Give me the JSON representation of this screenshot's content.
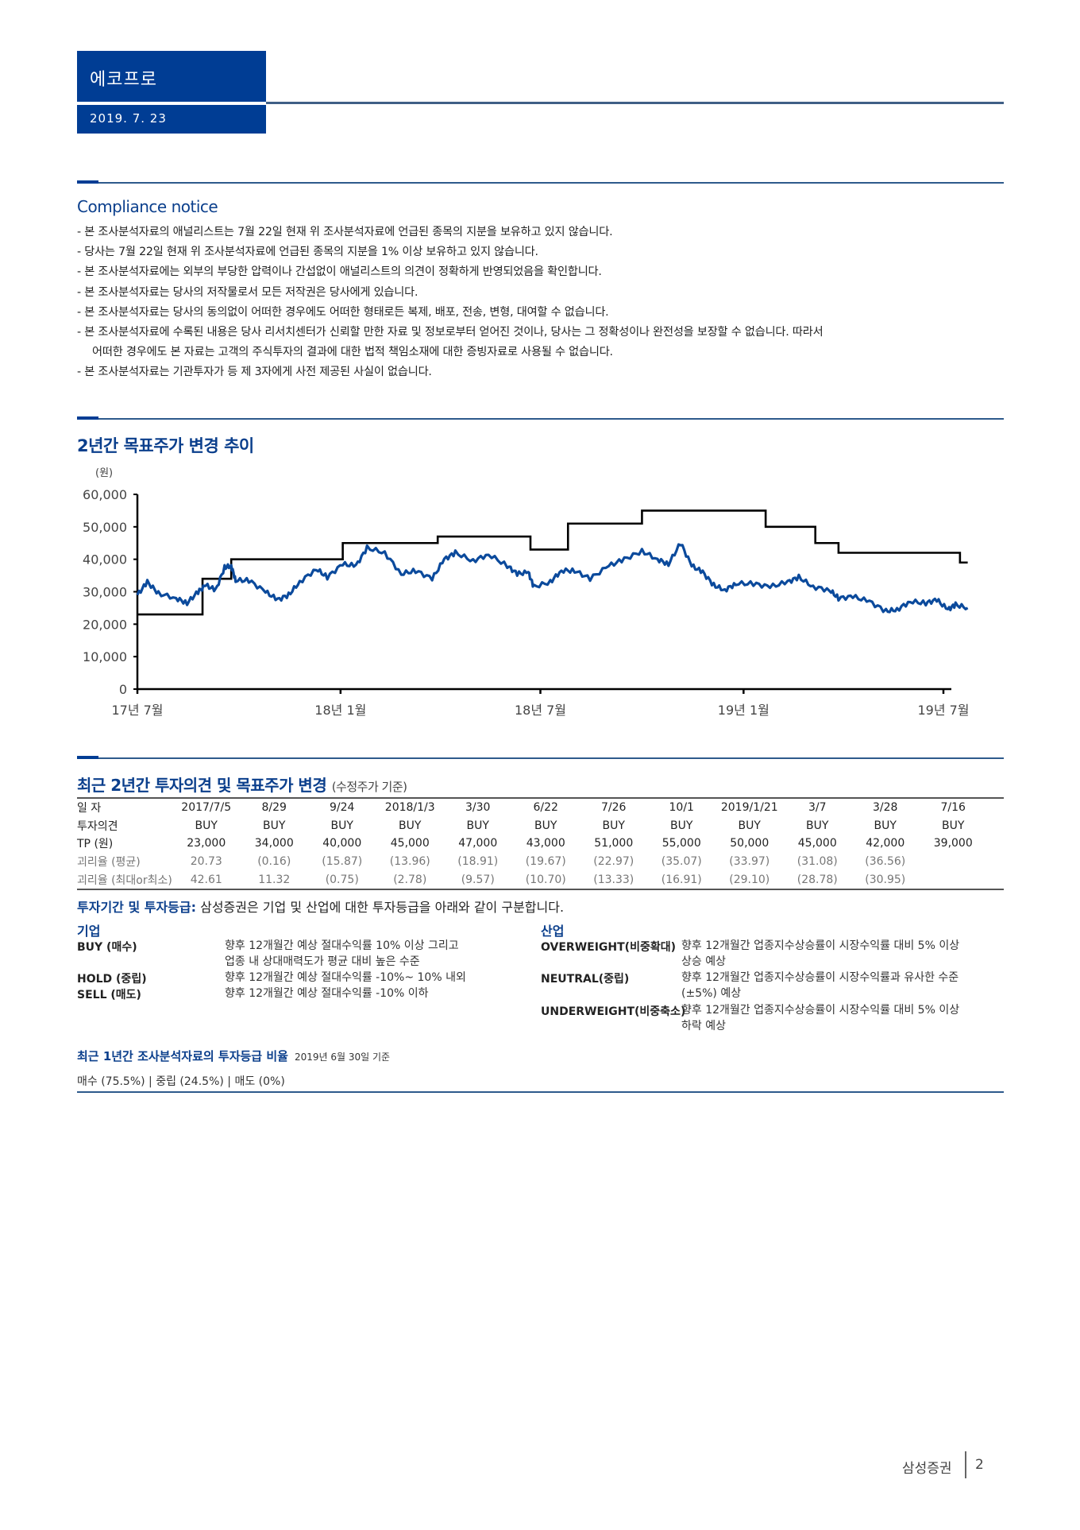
{
  "header": {
    "company": "에코프로",
    "date": "2019. 7. 23"
  },
  "compliance": {
    "title": "Compliance notice",
    "items": [
      "- 본 조사분석자료의 애널리스트는 7월 22일 현재 위 조사분석자료에 언급된 종목의 지분을 보유하고 있지 않습니다.",
      "- 당사는 7월 22일 현재 위 조사분석자료에 언급된 종목의 지분을 1% 이상 보유하고 있지 않습니다.",
      "- 본 조사분석자료에는 외부의 부당한 압력이나 간섭없이 애널리스트의 의견이 정확하게 반영되었음을 확인합니다.",
      "- 본 조사분석자료는 당사의 저작물로서 모든 저작권은 당사에게 있습니다.",
      "- 본 조사분석자료는 당사의 동의없이 어떠한 경우에도 어떠한 형태로든 복제, 배포, 전송, 변형, 대여할 수 없습니다.",
      "- 본 조사분석자료에 수록된 내용은 당사 리서치센터가 신뢰할 만한 자료 및 정보로부터 얻어진 것이나, 당사는 그 정확성이나 완전성을 보장할 수 없습니다. 따라서",
      "어떠한 경우에도 본 자료는 고객의 주식투자의 결과에 대한 법적 책임소재에 대한 증빙자료로 사용될 수 없습니다.",
      "- 본 조사분석자료는 기관투자가 등 제 3자에게 사전 제공된 사실이 없습니다."
    ]
  },
  "chart_section": {
    "title": "2년간 목표주가 변경 추이"
  },
  "chart_data": {
    "type": "line",
    "title": "2년간 목표주가 변경 추이",
    "ylabel": "(원)",
    "xlabel": "",
    "ylim": [
      0,
      60000
    ],
    "yticks": [
      "60,000",
      "50,000",
      "40,000",
      "30,000",
      "20,000",
      "10,000",
      "0"
    ],
    "xticks": [
      "17년 7월",
      "18년 1월",
      "18년 7월",
      "19년 1월",
      "19년 7월"
    ],
    "grid": false,
    "legend": "none",
    "series": [
      {
        "name": "목표주가",
        "color": "#000000",
        "style": "step",
        "points": [
          {
            "date": "2017-07-05",
            "value": 23000
          },
          {
            "date": "2017-08-29",
            "value": 34000
          },
          {
            "date": "2017-09-24",
            "value": 40000
          },
          {
            "date": "2018-01-03",
            "value": 45000
          },
          {
            "date": "2018-03-30",
            "value": 47000
          },
          {
            "date": "2018-06-22",
            "value": 43000
          },
          {
            "date": "2018-07-26",
            "value": 51000
          },
          {
            "date": "2018-10-01",
            "value": 55000
          },
          {
            "date": "2019-01-21",
            "value": 50000
          },
          {
            "date": "2019-03-07",
            "value": 45000
          },
          {
            "date": "2019-03-28",
            "value": 42000
          },
          {
            "date": "2019-07-16",
            "value": 39000
          },
          {
            "date": "2019-07-23",
            "value": 39000
          }
        ]
      },
      {
        "name": "수정주가",
        "color": "#0b4a9c",
        "style": "line",
        "points": [
          {
            "date": "2017-07",
            "value": 29000
          },
          {
            "date": "2017-07-10",
            "value": 33000
          },
          {
            "date": "2017-07-20",
            "value": 29500
          },
          {
            "date": "2017-08-05",
            "value": 28000
          },
          {
            "date": "2017-08-15",
            "value": 26500
          },
          {
            "date": "2017-08-25",
            "value": 30000
          },
          {
            "date": "2017-09-01",
            "value": 32000
          },
          {
            "date": "2017-09-10",
            "value": 30500
          },
          {
            "date": "2017-09-18",
            "value": 37500
          },
          {
            "date": "2017-09-24",
            "value": 38000
          },
          {
            "date": "2017-09-28",
            "value": 33500
          },
          {
            "date": "2017-10-10",
            "value": 33500
          },
          {
            "date": "2017-10-25",
            "value": 30000
          },
          {
            "date": "2017-11-05",
            "value": 27500
          },
          {
            "date": "2017-11-15",
            "value": 29000
          },
          {
            "date": "2017-11-25",
            "value": 33000
          },
          {
            "date": "2017-12-10",
            "value": 37000
          },
          {
            "date": "2017-12-20",
            "value": 34500
          },
          {
            "date": "2018-01-03",
            "value": 38500
          },
          {
            "date": "2018-01-15",
            "value": 38000
          },
          {
            "date": "2018-01-25",
            "value": 43500
          },
          {
            "date": "2018-02-10",
            "value": 42000
          },
          {
            "date": "2018-02-25",
            "value": 35500
          },
          {
            "date": "2018-03-10",
            "value": 36500
          },
          {
            "date": "2018-03-25",
            "value": 34000
          },
          {
            "date": "2018-04-05",
            "value": 40000
          },
          {
            "date": "2018-04-15",
            "value": 42000
          },
          {
            "date": "2018-05-01",
            "value": 39500
          },
          {
            "date": "2018-05-15",
            "value": 41500
          },
          {
            "date": "2018-06-01",
            "value": 38000
          },
          {
            "date": "2018-06-10",
            "value": 35500
          },
          {
            "date": "2018-06-20",
            "value": 36000
          },
          {
            "date": "2018-06-25",
            "value": 31500
          },
          {
            "date": "2018-07-10",
            "value": 33000
          },
          {
            "date": "2018-07-20",
            "value": 36500
          },
          {
            "date": "2018-08-01",
            "value": 36500
          },
          {
            "date": "2018-08-15",
            "value": 34000
          },
          {
            "date": "2018-09-01",
            "value": 38000
          },
          {
            "date": "2018-09-15",
            "value": 40000
          },
          {
            "date": "2018-10-01",
            "value": 42500
          },
          {
            "date": "2018-10-15",
            "value": 40000
          },
          {
            "date": "2018-10-25",
            "value": 38500
          },
          {
            "date": "2018-11-05",
            "value": 45000
          },
          {
            "date": "2018-11-15",
            "value": 38000
          },
          {
            "date": "2018-11-25",
            "value": 36000
          },
          {
            "date": "2018-12-05",
            "value": 32000
          },
          {
            "date": "2018-12-15",
            "value": 30500
          },
          {
            "date": "2018-12-25",
            "value": 32500
          },
          {
            "date": "2019-01-10",
            "value": 32500
          },
          {
            "date": "2019-01-25",
            "value": 31500
          },
          {
            "date": "2019-02-10",
            "value": 33000
          },
          {
            "date": "2019-02-20",
            "value": 34500
          },
          {
            "date": "2019-03-05",
            "value": 31500
          },
          {
            "date": "2019-03-20",
            "value": 30500
          },
          {
            "date": "2019-03-28",
            "value": 28000
          },
          {
            "date": "2019-04-10",
            "value": 28500
          },
          {
            "date": "2019-04-25",
            "value": 27000
          },
          {
            "date": "2019-05-10",
            "value": 24000
          },
          {
            "date": "2019-05-20",
            "value": 24500
          },
          {
            "date": "2019-06-01",
            "value": 27000
          },
          {
            "date": "2019-06-15",
            "value": 26500
          },
          {
            "date": "2019-06-25",
            "value": 27500
          },
          {
            "date": "2019-07-05",
            "value": 24500
          },
          {
            "date": "2019-07-12",
            "value": 26000
          },
          {
            "date": "2019-07-23",
            "value": 25000
          }
        ]
      }
    ]
  },
  "table_section": {
    "title": "최근 2년간 투자의견 및 목표주가 변경",
    "subtitle": "(수정주가 기준)",
    "row_labels": [
      "일 자",
      "투자의견",
      "TP (원)",
      "괴리율 (평균)",
      "괴리율 (최대or최소)"
    ],
    "dates": [
      "2017/7/5",
      "8/29",
      "9/24",
      "2018/1/3",
      "3/30",
      "6/22",
      "7/26",
      "10/1",
      "2019/1/21",
      "3/7",
      "3/28",
      "7/16"
    ],
    "opinions": [
      "BUY",
      "BUY",
      "BUY",
      "BUY",
      "BUY",
      "BUY",
      "BUY",
      "BUY",
      "BUY",
      "BUY",
      "BUY",
      "BUY"
    ],
    "tp": [
      "23,000",
      "34,000",
      "40,000",
      "45,000",
      "47,000",
      "43,000",
      "51,000",
      "55,000",
      "50,000",
      "45,000",
      "42,000",
      "39,000"
    ],
    "gap_avg": [
      "20.73",
      "(0.16)",
      "(15.87)",
      "(13.96)",
      "(18.91)",
      "(19.67)",
      "(22.97)",
      "(35.07)",
      "(33.97)",
      "(31.08)",
      "(36.56)",
      ""
    ],
    "gap_maxmin": [
      "42.61",
      "11.32",
      "(0.75)",
      "(2.78)",
      "(9.57)",
      "(10.70)",
      "(13.33)",
      "(16.91)",
      "(29.10)",
      "(28.78)",
      "(30.95)",
      ""
    ]
  },
  "ratings": {
    "intro_bold": "투자기간 및 투자등급:",
    "intro_text": " 삼성증권은 기업 및 산업에 대한 투자등급을 아래와 같이 구분합니다.",
    "company": {
      "heading": "기업",
      "items": [
        {
          "key": "BUY (매수)",
          "desc": "향후 12개월간 예상 절대수익률 10% 이상 그리고",
          "desc2": "업종 내 상대매력도가 평균 대비 높은 수준"
        },
        {
          "key": "HOLD (중립)",
          "desc": "향후 12개월간 예상 절대수익률 -10%~ 10% 내외",
          "desc2": ""
        },
        {
          "key": "SELL (매도)",
          "desc": "향후 12개월간 예상 절대수익률 -10% 이하",
          "desc2": ""
        }
      ]
    },
    "industry": {
      "heading": "산업",
      "items": [
        {
          "key": "OVERWEIGHT(비중확대)",
          "desc": "향후 12개월간 업종지수상승률이 시장수익률 대비 5% 이상",
          "desc2": "상승 예상"
        },
        {
          "key": "NEUTRAL(중립)",
          "desc": "향후 12개월간 업종지수상승률이 시장수익률과 유사한 수준",
          "desc2": "(±5%) 예상"
        },
        {
          "key": "UNDERWEIGHT(비중축소)",
          "desc": "향후 12개월간 업종지수상승률이 시장수익률 대비 5% 이상",
          "desc2": "하락 예상"
        }
      ]
    }
  },
  "ratio": {
    "title": "최근 1년간 조사분석자료의 투자등급 비율",
    "as_of": "2019년 6월 30일 기준",
    "values": "매수 (75.5%) | 중립 (24.5%) | 매도 (0%)"
  },
  "footer": {
    "brand": "삼성증권",
    "page": "2"
  },
  "colors": {
    "brand_blue": "#003d94",
    "heading_blue": "#0b3f8c",
    "price_line": "#0b4a9c",
    "target_line": "#000000"
  }
}
